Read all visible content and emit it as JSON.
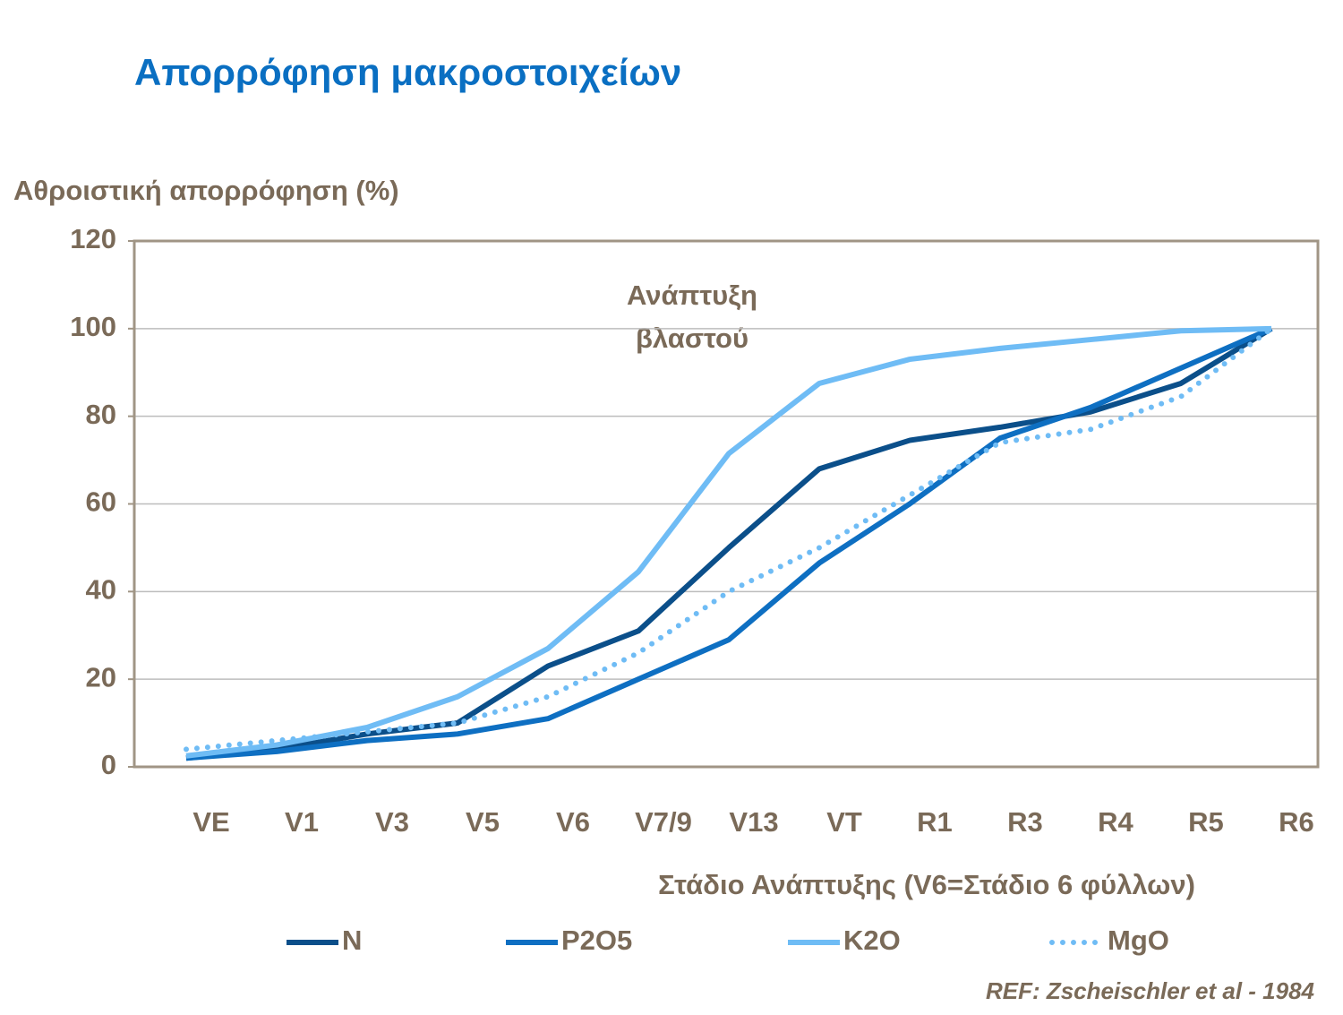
{
  "chart_data": {
    "type": "line",
    "title": "Απορρόφηση μακροστοιχείων",
    "y_label": "Αθροιστική απορρόφηση (%)",
    "x_label": "Στάδιο Ανάπτυξης (V6=Στάδιο 6 φύλλων)",
    "annotation": [
      "Ανάπτυξη",
      "βλαστού"
    ],
    "source": "REF: Zscheischler  et al - 1984",
    "categories": [
      "VE",
      "V1",
      "V3",
      "V5",
      "V6",
      "V7/9",
      "V13",
      "VT",
      "R1",
      "R3",
      "R4",
      "R5",
      "R6"
    ],
    "series": [
      {
        "name": "N",
        "color": "#0b4f8a",
        "dash": "solid",
        "values": [
          2,
          4,
          7.5,
          10,
          23,
          31,
          50,
          68,
          74.5,
          77.5,
          81,
          87.5,
          100
        ]
      },
      {
        "name": "P2O5",
        "color": "#0e6fc2",
        "dash": "solid",
        "values": [
          2,
          3.5,
          6,
          7.5,
          11,
          20,
          29,
          46.5,
          60,
          75,
          82,
          91,
          100
        ]
      },
      {
        "name": "K2O",
        "color": "#6fbcf5",
        "dash": "solid",
        "values": [
          2.5,
          5,
          9,
          16,
          27,
          44.5,
          71.5,
          87.5,
          93,
          95.5,
          97.5,
          99.5,
          100
        ]
      },
      {
        "name": "MgO",
        "color": "#6fbcf5",
        "dash": "dotted",
        "values": [
          4,
          6,
          8,
          10,
          16,
          26,
          40,
          50,
          62,
          74,
          77,
          84.5,
          100
        ]
      }
    ],
    "ylim": [
      0,
      120
    ],
    "yticks": [
      0,
      20,
      40,
      60,
      80,
      100,
      120
    ],
    "grid": true
  }
}
